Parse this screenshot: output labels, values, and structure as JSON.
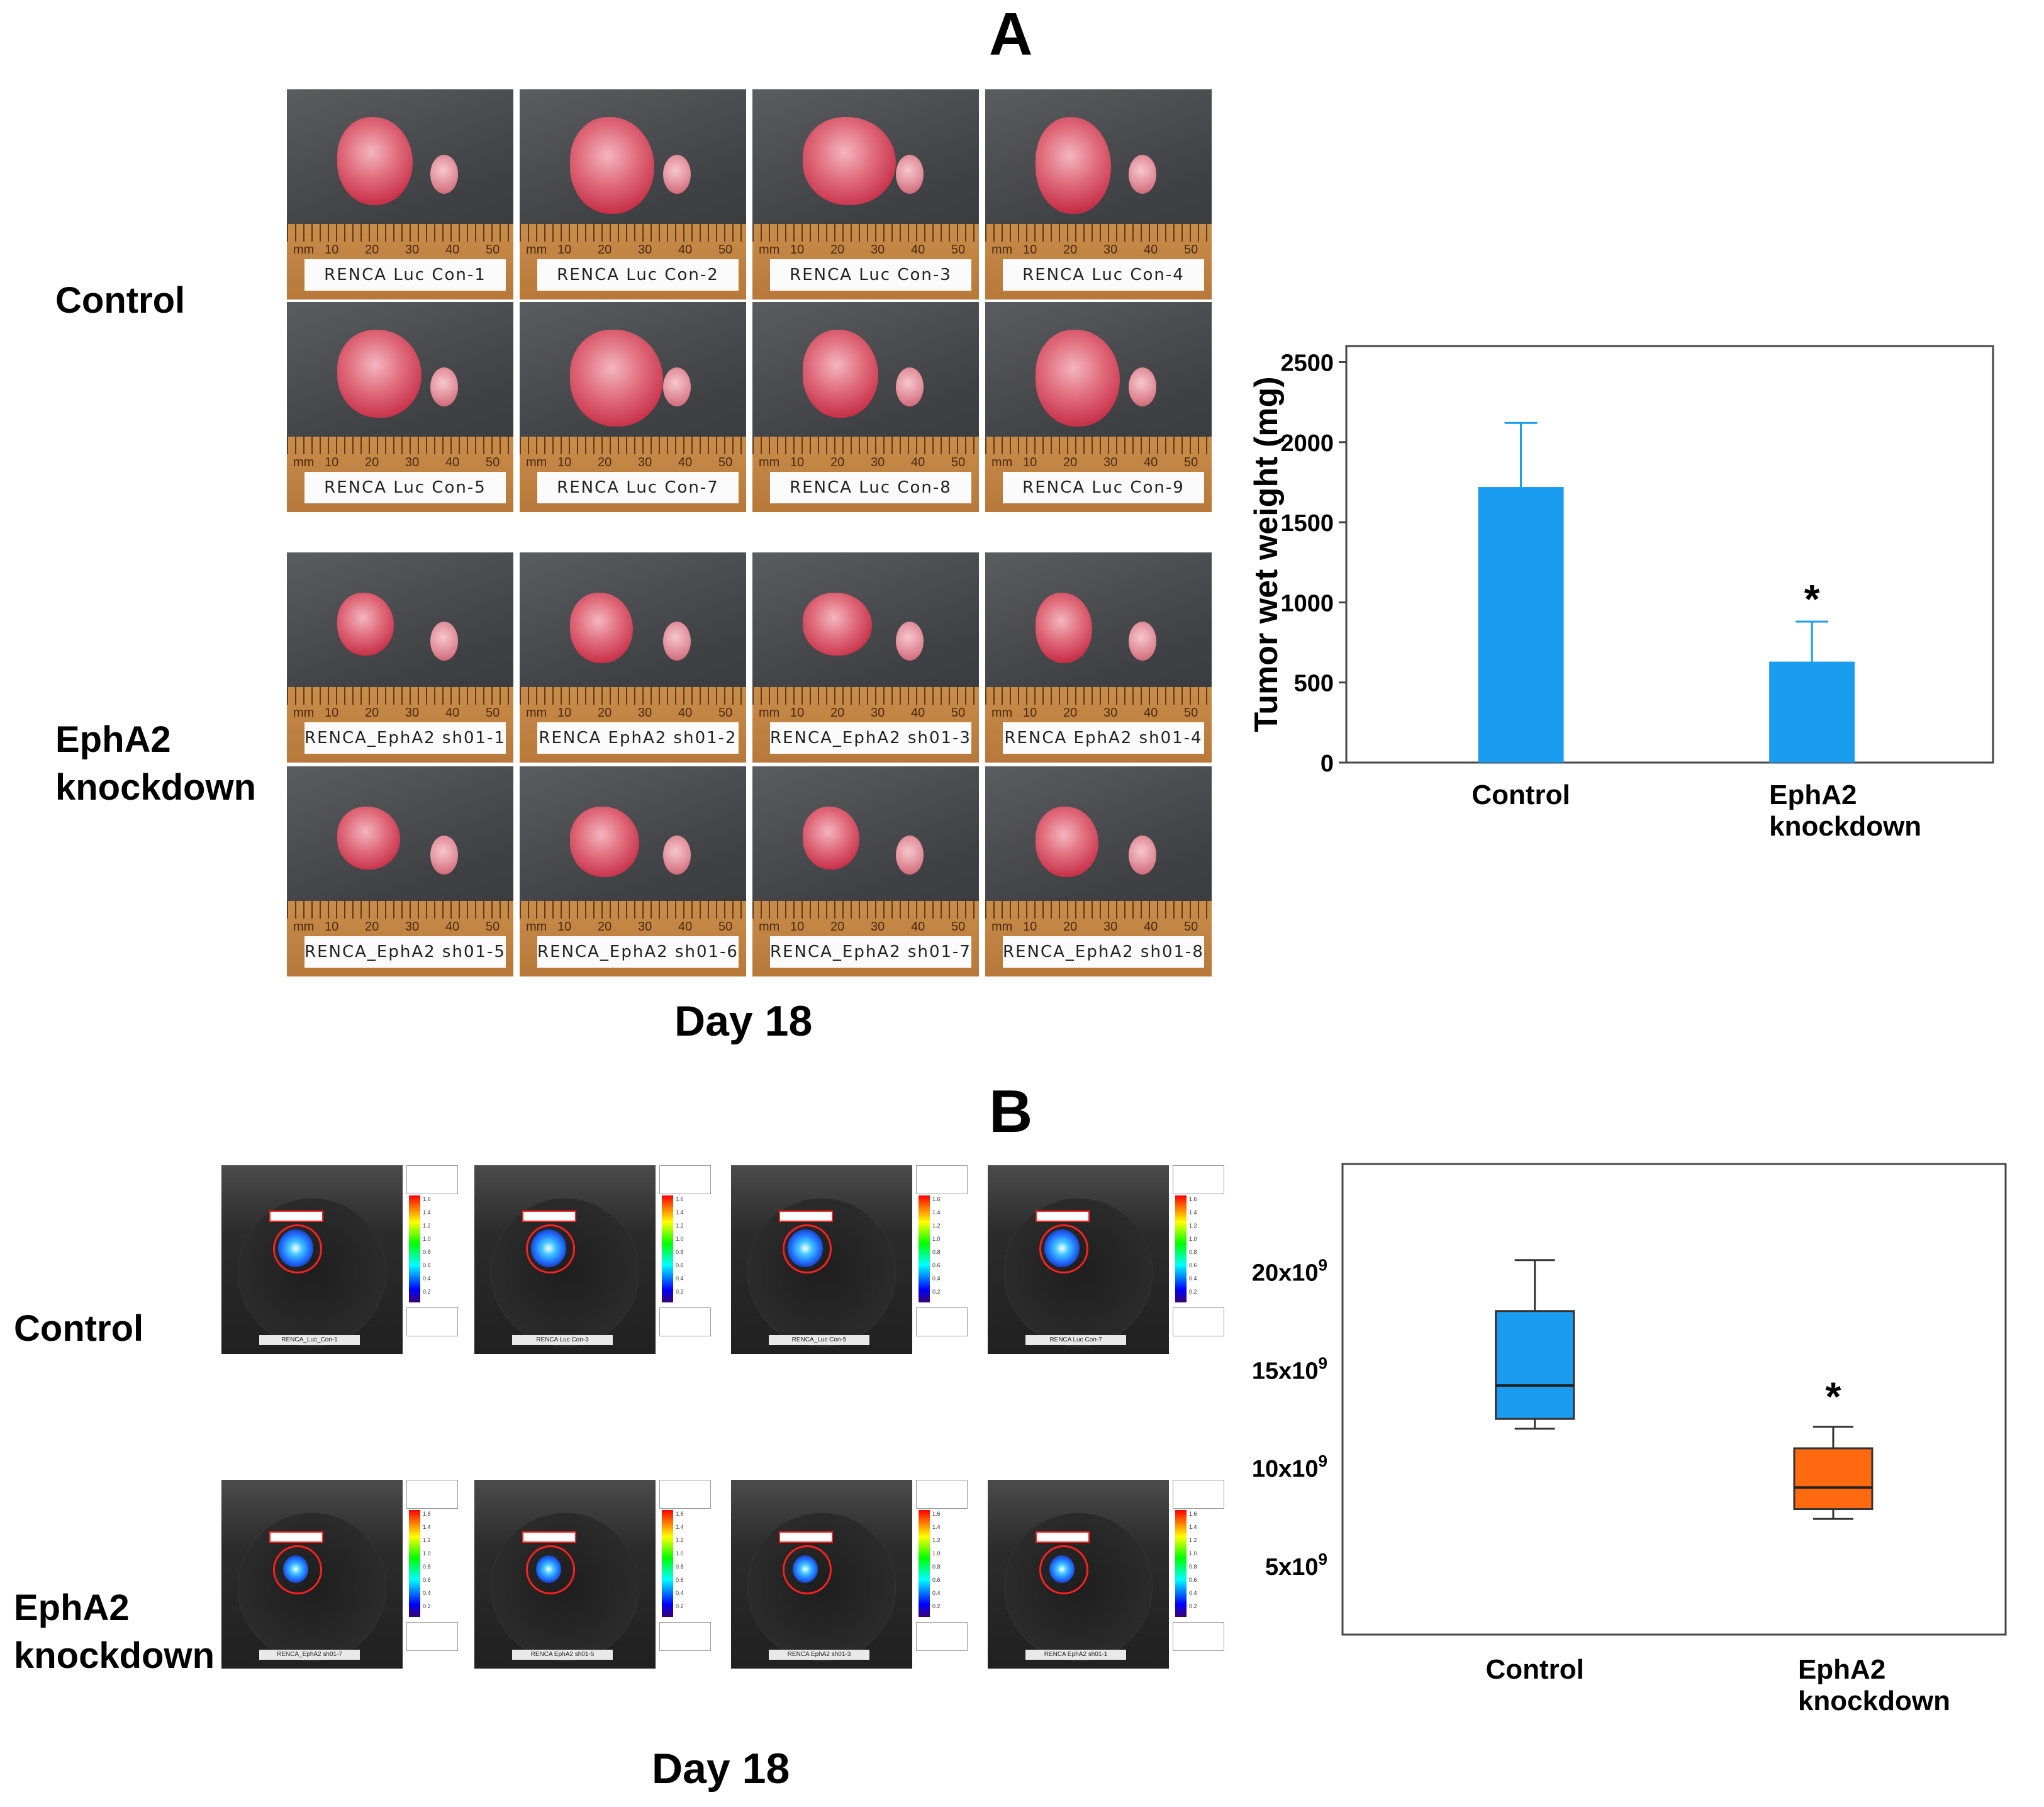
{
  "panels": {
    "a_letter": "A",
    "b_letter": "B"
  },
  "panel_a": {
    "row_labels": {
      "control": "Control",
      "knockdown": "EphA2\nknockdown"
    },
    "day_label": "Day 18",
    "ruler_unit": "mm",
    "ruler_numbers": [
      "10",
      "20",
      "30",
      "40",
      "50"
    ],
    "control_photos": [
      "RENCA Luc Con-1",
      "RENCA Luc Con-2",
      "RENCA Luc Con-3",
      "RENCA Luc Con-4",
      "RENCA Luc Con-5",
      "RENCA Luc Con-7",
      "RENCA Luc Con-8",
      "RENCA Luc Con-9"
    ],
    "knockdown_photos": [
      "RENCA_EphA2 sh01-1",
      "RENCA EphA2 sh01-2",
      "RENCA_EphA2 sh01-3",
      "RENCA EphA2 sh01-4",
      "RENCA_EphA2 sh01-5",
      "RENCA_EphA2 sh01-6",
      "RENCA_EphA2 sh01-7",
      "RENCA_EphA2 sh01-8"
    ]
  },
  "panel_b": {
    "row_labels": {
      "control": "Control",
      "knockdown": "EphA2\nknockdown"
    },
    "day_label": "Day 18",
    "bio_captions": {
      "control": [
        "RENCA_Luc_Con-1",
        "RENCA Luc Con-3",
        "RENCA_Luc Con-5",
        "RENCA Luc Con-7"
      ],
      "knockdown": [
        "RENCA_EphA2 sh01-7",
        "RENCA EphA2 sh01-5",
        "RENCA EphA2 sh01-3",
        "RENCA EphA2 sh01-1"
      ]
    },
    "scale_ticks": [
      "1.6",
      "1.4",
      "1.2",
      "1.0",
      "0.8",
      "0.6",
      "0.4",
      "0.2"
    ]
  },
  "chart_data": [
    {
      "type": "bar",
      "title": "",
      "xlabel": "",
      "ylabel": "Tumor wet weight (mg)",
      "categories": [
        "Control",
        "EphA2\nknockdown"
      ],
      "values": [
        1720,
        630
      ],
      "error_upper": [
        2120,
        880
      ],
      "ylim": [
        0,
        2600
      ],
      "yticks": [
        0,
        500,
        1000,
        1500,
        2000,
        2500
      ],
      "significance": [
        "",
        "*"
      ],
      "colors": [
        "#1a9cf0",
        "#1a9cf0"
      ],
      "grid": false
    },
    {
      "type": "box",
      "title": "",
      "xlabel": "",
      "ylabel": "",
      "categories": [
        "Control",
        "EphA2\nknockdown"
      ],
      "series": [
        {
          "name": "Control",
          "min": 12.0,
          "q1": 12.5,
          "median": 14.2,
          "q3": 18.0,
          "max": 20.6,
          "color": "#1a9cf0"
        },
        {
          "name": "EphA2 knockdown",
          "min": 7.4,
          "q1": 7.9,
          "median": 9.0,
          "q3": 11.0,
          "max": 12.1,
          "color": "#ff6a10"
        }
      ],
      "yticks": [
        5,
        10,
        15,
        20
      ],
      "ytick_labels": [
        "5x10",
        "10x10",
        "15x10",
        "20x10"
      ],
      "ytick_exponent": "9",
      "ylim": [
        1.5,
        25.5
      ],
      "significance": [
        "",
        "*"
      ],
      "grid": false
    }
  ]
}
